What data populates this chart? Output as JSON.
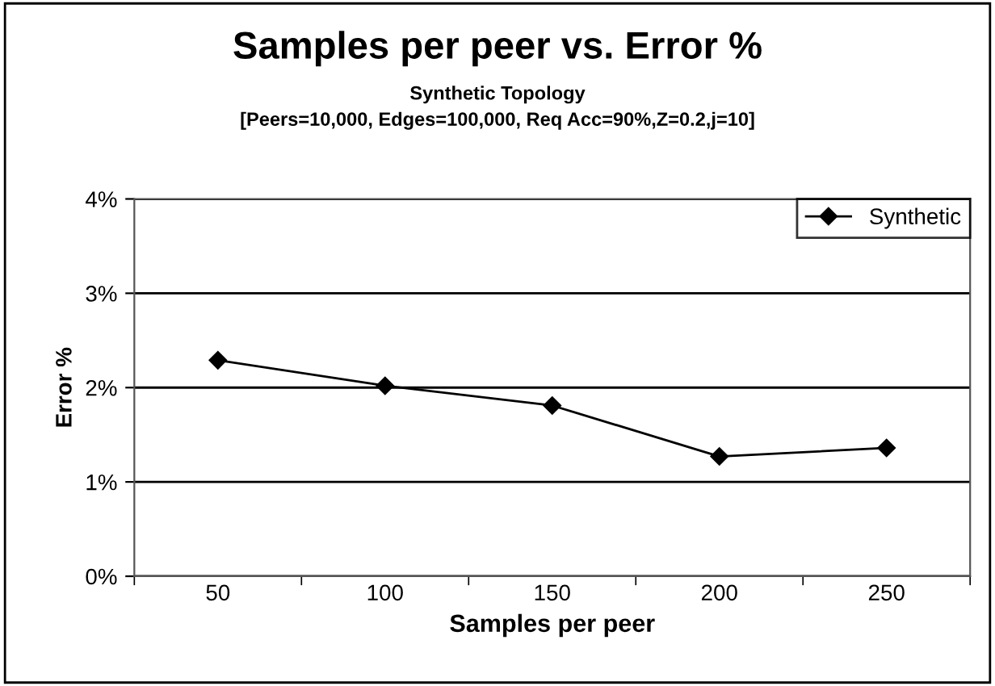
{
  "chart_data": {
    "type": "line",
    "title": "Samples per peer vs. Error %",
    "subtitle": "Synthetic Topology\n[Peers=10,000, Edges=100,000, Req Acc=90%,Z=0.2,j=10]",
    "xlabel": "Samples per peer",
    "ylabel": "Error %",
    "categories": [
      "50",
      "100",
      "150",
      "200",
      "250"
    ],
    "series": [
      {
        "name": "Synthetic",
        "color": "#000000",
        "values": [
          2.29,
          2.02,
          1.81,
          1.27,
          1.36
        ]
      }
    ],
    "ylim": [
      0,
      4
    ],
    "yticks": [
      {
        "value": 0,
        "label": "0%"
      },
      {
        "value": 1,
        "label": "1%"
      },
      {
        "value": 2,
        "label": "2%"
      },
      {
        "value": 3,
        "label": "3%"
      },
      {
        "value": 4,
        "label": "4%"
      }
    ],
    "grid": "y",
    "legend": "top right",
    "marker": "diamond",
    "line_style": "solid"
  }
}
